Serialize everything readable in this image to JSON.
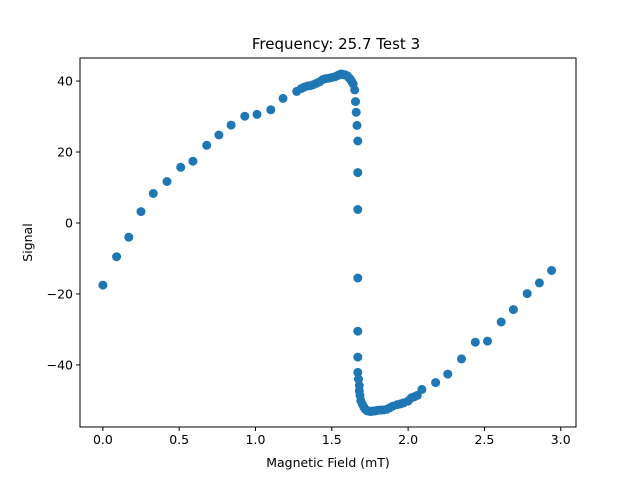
{
  "chart_data": {
    "type": "scatter",
    "title": "Frequency: 25.7 Test 3",
    "xlabel": "Magnetic Field (mT)",
    "ylabel": "Signal",
    "xlim": [
      -0.15,
      3.1
    ],
    "ylim": [
      -57.5,
      46.5
    ],
    "xticks": [
      0.0,
      0.5,
      1.0,
      1.5,
      2.0,
      2.5,
      3.0
    ],
    "xtick_labels": [
      "0.0",
      "0.5",
      "1.0",
      "1.5",
      "2.0",
      "2.5",
      "3.0"
    ],
    "yticks": [
      -40,
      -20,
      0,
      20,
      40
    ],
    "ytick_labels": [
      "−40",
      "−20",
      "0",
      "20",
      "40"
    ],
    "grid": false,
    "marker_color": "#1f77b4",
    "x": [
      0.0,
      0.09,
      0.17,
      0.25,
      0.33,
      0.42,
      0.51,
      0.59,
      0.68,
      0.76,
      0.84,
      0.93,
      1.01,
      1.1,
      1.18,
      1.27,
      1.3,
      1.32,
      1.34,
      1.36,
      1.38,
      1.4,
      1.42,
      1.44,
      1.46,
      1.48,
      1.5,
      1.52,
      1.54,
      1.55,
      1.56,
      1.57,
      1.58,
      1.59,
      1.6,
      1.61,
      1.62,
      1.63,
      1.64,
      1.65,
      1.655,
      1.66,
      1.665,
      1.67,
      1.67,
      1.67,
      1.67,
      1.67,
      1.67,
      1.67,
      1.675,
      1.68,
      1.68,
      1.685,
      1.69,
      1.7,
      1.71,
      1.72,
      1.73,
      1.74,
      1.75,
      1.76,
      1.77,
      1.78,
      1.79,
      1.8,
      1.82,
      1.84,
      1.86,
      1.88,
      1.9,
      1.93,
      1.95,
      1.97,
      2.0,
      2.02,
      2.04,
      2.06,
      2.09,
      2.18,
      2.26,
      2.35,
      2.44,
      2.52,
      2.61,
      2.69,
      2.78,
      2.86,
      2.94
    ],
    "y": [
      -17.5,
      -9.5,
      -4.0,
      3.2,
      8.3,
      11.7,
      15.7,
      17.4,
      21.9,
      24.8,
      27.6,
      30.1,
      30.6,
      31.9,
      35.1,
      37.1,
      37.9,
      38.3,
      38.6,
      38.7,
      39.0,
      39.4,
      39.8,
      40.4,
      40.7,
      40.8,
      41.0,
      41.2,
      41.6,
      41.8,
      42.0,
      41.9,
      41.8,
      41.7,
      41.5,
      41.0,
      40.6,
      39.9,
      39.2,
      37.5,
      34.2,
      31.2,
      27.5,
      23.1,
      14.2,
      3.8,
      -15.5,
      -30.5,
      -37.8,
      -42.1,
      -44.0,
      -45.8,
      -47.3,
      -48.6,
      -50.1,
      -51.1,
      -51.9,
      -52.5,
      -52.9,
      -53.0,
      -53.1,
      -53.1,
      -53.0,
      -53.0,
      -52.9,
      -52.8,
      -52.7,
      -52.7,
      -52.5,
      -52.1,
      -51.6,
      -51.2,
      -51.0,
      -50.7,
      -50.2,
      -49.3,
      -49.0,
      -48.6,
      -46.9,
      -45.0,
      -42.6,
      -38.3,
      -33.6,
      -33.3,
      -27.9,
      -24.4,
      -19.9,
      -16.9,
      -13.4
    ]
  }
}
